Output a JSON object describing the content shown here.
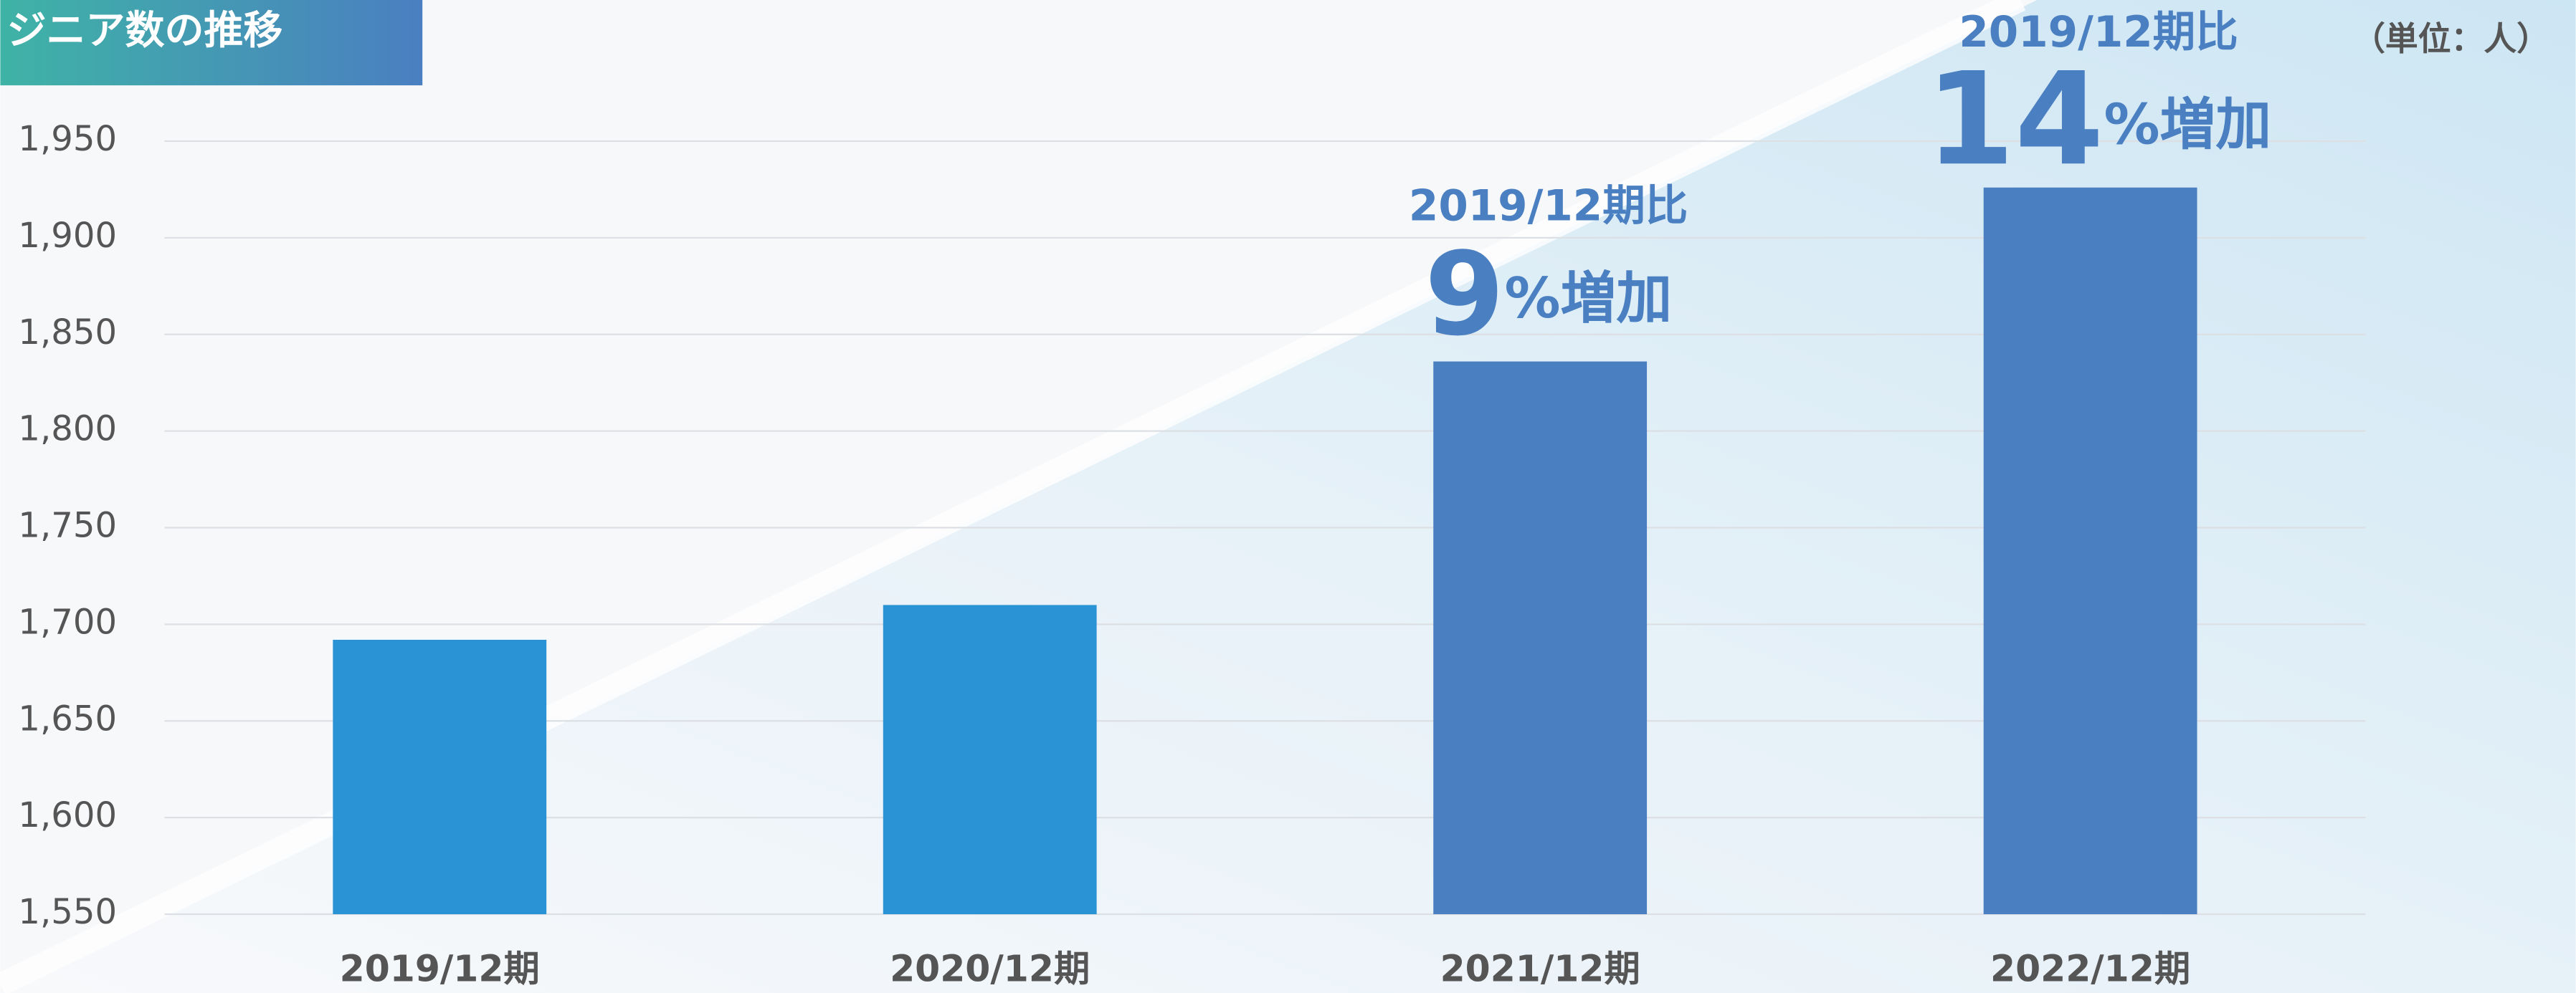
{
  "chart_data": {
    "type": "bar",
    "title": "ジニア数の推移",
    "unit_label": "（単位：人）",
    "categories": [
      "2019/12期",
      "2020/12期",
      "2021/12期",
      "2022/12期"
    ],
    "values": [
      1692,
      1710,
      1836,
      1926
    ],
    "colors": [
      "#2a93d5",
      "#2a93d5",
      "#4a7fc1",
      "#4a7fc1"
    ],
    "ylim": [
      1550,
      1950
    ],
    "yticks": [
      {
        "value": 1550,
        "label": "1,550"
      },
      {
        "value": 1600,
        "label": "1,600"
      },
      {
        "value": 1650,
        "label": "1,650"
      },
      {
        "value": 1700,
        "label": "1,700"
      },
      {
        "value": 1750,
        "label": "1,750"
      },
      {
        "value": 1800,
        "label": "1,800"
      },
      {
        "value": 1850,
        "label": "1,850"
      },
      {
        "value": 1900,
        "label": "1,900"
      },
      {
        "value": 1950,
        "label": "1,950"
      }
    ],
    "grid": true,
    "annotations": [
      {
        "category": 2,
        "text": "2019/12期比",
        "percent": 9,
        "suffix": "%増加",
        "color": "#4a7fc1"
      },
      {
        "category": 3,
        "text": "2019/12期比",
        "percent": 14,
        "suffix": "%増加",
        "color": "#4a7fc1"
      }
    ]
  }
}
